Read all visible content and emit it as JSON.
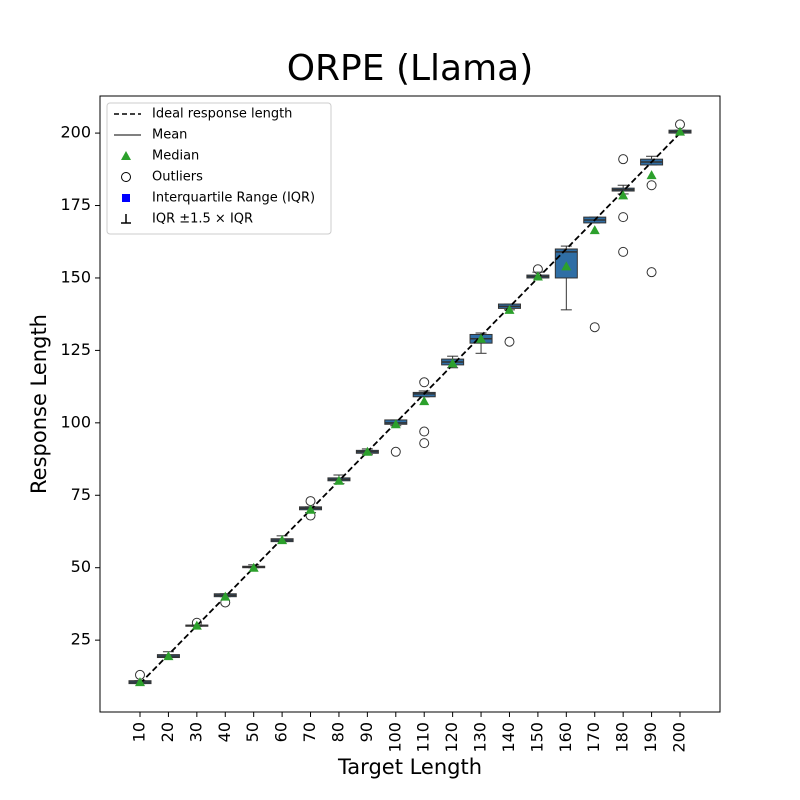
{
  "chart_data": {
    "type": "box",
    "title": "ORPE (Llama)",
    "x_label": "Target Length",
    "y_label": "Response Length",
    "categories": [
      10,
      20,
      30,
      40,
      50,
      60,
      70,
      80,
      90,
      100,
      110,
      120,
      130,
      140,
      150,
      160,
      170,
      180,
      190,
      200
    ],
    "ylim": [
      0.2,
      212.8
    ],
    "yticks": [
      25,
      50,
      75,
      100,
      125,
      150,
      175,
      200
    ],
    "box_color": "#2f6ea5",
    "ideal": {
      "name": "Ideal response length",
      "x": [
        10,
        200
      ],
      "y": [
        10,
        200
      ],
      "color": "#000000"
    },
    "mean": {
      "name": "Mean",
      "values": [
        10.5,
        19.5,
        30,
        40.5,
        50.2,
        59.5,
        70.5,
        80.5,
        90,
        100,
        110,
        121,
        129,
        140.2,
        150.5,
        159,
        170,
        180.5,
        190,
        200.5
      ]
    },
    "median": {
      "name": "Median",
      "color": "#2ca02c",
      "values": [
        10.5,
        19.5,
        30,
        40,
        50,
        59.5,
        70,
        80,
        90,
        99.5,
        107.5,
        120.5,
        129,
        139,
        150.5,
        154,
        166.5,
        178.5,
        185.5,
        200.5
      ]
    },
    "outliers": {
      "name": "Outliers",
      "values": [
        [
          13
        ],
        [],
        [
          31
        ],
        [
          38
        ],
        [],
        [],
        [
          73,
          68
        ],
        [],
        [],
        [
          90
        ],
        [
          114,
          97,
          93
        ],
        [],
        [],
        [
          128
        ],
        [
          153
        ],
        [],
        [
          133
        ],
        [
          191,
          171,
          159
        ],
        [
          182,
          152
        ],
        [
          203
        ]
      ]
    },
    "iqr": {
      "name": "Interquartile Range (IQR)",
      "legend_color": "#0000ff",
      "q1": [
        10,
        19,
        29.8,
        40,
        50,
        59,
        70,
        80,
        89.5,
        99.5,
        109,
        120,
        127.5,
        139.5,
        150,
        150,
        169,
        180,
        189,
        200
      ],
      "q3": [
        11,
        20,
        30.2,
        41,
        50.5,
        60,
        71,
        81,
        90.5,
        101,
        110.5,
        122,
        130.5,
        141,
        151,
        160,
        171,
        181,
        191,
        201
      ]
    },
    "whiskers": {
      "name": "IQR ±1.5 ×  IQR",
      "low": [
        10,
        19,
        29.8,
        40,
        50,
        59,
        69,
        79,
        89,
        99,
        109,
        119,
        124,
        139,
        150,
        139,
        169,
        179,
        189,
        200
      ],
      "high": [
        11,
        21,
        30.2,
        41,
        51,
        61,
        71,
        82,
        91,
        101,
        111,
        123,
        131,
        141,
        152,
        161,
        171,
        182,
        192,
        201
      ]
    }
  }
}
